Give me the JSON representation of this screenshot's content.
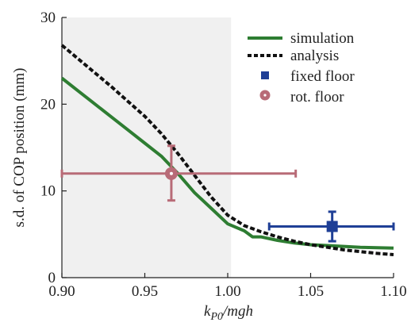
{
  "chart_data": {
    "type": "line",
    "title": "",
    "xlabel_main": "k",
    "xlabel_sub": "P0",
    "xlabel_rest": "/mgh",
    "ylabel": "s.d. of COP position (mm)",
    "xlim": [
      0.9,
      1.1
    ],
    "ylim": [
      0,
      30
    ],
    "xticks": [
      0.9,
      0.95,
      1.0,
      1.05,
      1.1
    ],
    "xtick_labels": [
      "0.90",
      "0.95",
      "1.00",
      "1.05",
      "1.10"
    ],
    "yticks": [
      0,
      10,
      20,
      30
    ],
    "ytick_labels": [
      "0",
      "10",
      "20",
      "30"
    ],
    "grid": false,
    "legend_position": "top-right",
    "shaded_region": {
      "x": [
        0.9,
        1.002
      ],
      "color": "#f0f0f0"
    },
    "series": [
      {
        "name": "simulation",
        "kind": "line",
        "color": "#2e7d32",
        "x": [
          0.9,
          0.91,
          0.92,
          0.93,
          0.94,
          0.95,
          0.96,
          0.97,
          0.98,
          0.99,
          1.0,
          1.01,
          1.015,
          1.02,
          1.03,
          1.04,
          1.05,
          1.06,
          1.07,
          1.08,
          1.09,
          1.1
        ],
        "y": [
          23.0,
          21.5,
          20.0,
          18.5,
          17.0,
          15.5,
          14.0,
          12.0,
          9.8,
          8.0,
          6.2,
          5.4,
          4.7,
          4.7,
          4.3,
          4.0,
          3.8,
          3.7,
          3.6,
          3.5,
          3.45,
          3.4
        ]
      },
      {
        "name": "analysis",
        "kind": "dashed",
        "color": "#111111",
        "x": [
          0.9,
          0.91,
          0.92,
          0.93,
          0.94,
          0.95,
          0.96,
          0.97,
          0.98,
          0.99,
          1.0,
          1.01,
          1.02,
          1.03,
          1.04,
          1.05,
          1.06,
          1.07,
          1.08,
          1.09,
          1.1
        ],
        "y": [
          26.8,
          25.2,
          23.6,
          22.0,
          20.3,
          18.6,
          16.6,
          14.3,
          11.8,
          9.3,
          7.2,
          6.0,
          5.3,
          4.7,
          4.2,
          3.8,
          3.5,
          3.2,
          3.0,
          2.8,
          2.65
        ]
      },
      {
        "name": "fixed floor",
        "kind": "point",
        "color": "#1f3f96",
        "x": 1.063,
        "y": 5.9,
        "xerr": [
          1.025,
          1.1
        ],
        "yerr": [
          4.2,
          7.6
        ]
      },
      {
        "name": "rot. floor",
        "kind": "point",
        "color": "#b86b77",
        "x": 0.966,
        "y": 12.0,
        "xerr": [
          0.9,
          1.041
        ],
        "yerr": [
          8.9,
          15.2
        ]
      }
    ]
  }
}
